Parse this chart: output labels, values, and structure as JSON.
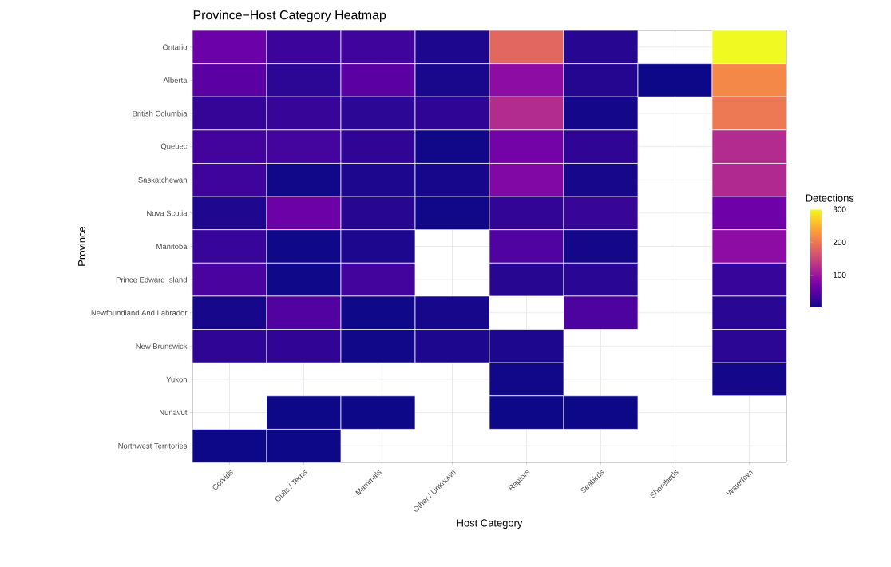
{
  "chart_data": {
    "type": "heatmap",
    "title": "Province−Host Category Heatmap",
    "xlabel": "Host Category",
    "ylabel": "Province",
    "clabel": "Detections",
    "categories": [
      "Corvids",
      "Gulls / Terns",
      "Mammals",
      "Other / Unknown",
      "Raptors",
      "Seabirds",
      "Shorebirds",
      "Waterfowl"
    ],
    "y_categories": [
      "Ontario",
      "Alberta",
      "British Columbia",
      "Quebec",
      "Saskatchewan",
      "Nova Scotia",
      "Manitoba",
      "Prince Edward Island",
      "Newfoundland And Labrador",
      "New Brunswick",
      "Yukon",
      "Nunavut",
      "Northwest Territories"
    ],
    "cells": [
      [
        62,
        28,
        30,
        10,
        183,
        16,
        null,
        300
      ],
      [
        50,
        19,
        50,
        8,
        88,
        14,
        1,
        214
      ],
      [
        24,
        26,
        19,
        20,
        122,
        5,
        null,
        200
      ],
      [
        32,
        33,
        21,
        3,
        68,
        20,
        null,
        122
      ],
      [
        30,
        3,
        10,
        6,
        80,
        7,
        null,
        120
      ],
      [
        12,
        63,
        16,
        3,
        22,
        26,
        null,
        64
      ],
      [
        25,
        2,
        10,
        null,
        42,
        5,
        null,
        88
      ],
      [
        38,
        2,
        32,
        null,
        16,
        17,
        null,
        25
      ],
      [
        7,
        44,
        2,
        6,
        null,
        40,
        null,
        17
      ],
      [
        20,
        21,
        3,
        10,
        10,
        null,
        null,
        18
      ],
      [
        null,
        null,
        null,
        null,
        3,
        null,
        null,
        5
      ],
      [
        null,
        1,
        1,
        null,
        1,
        1,
        null,
        null
      ],
      [
        1,
        1,
        null,
        null,
        null,
        null,
        null,
        null
      ]
    ],
    "clim": [
      1,
      300
    ],
    "cticks": [
      100,
      200,
      300
    ],
    "grid": true
  }
}
